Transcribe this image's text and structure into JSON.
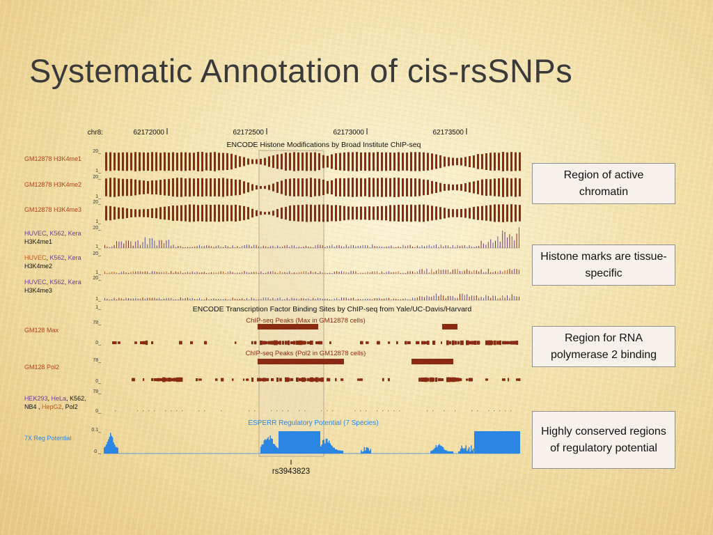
{
  "title": "Systematic Annotation of cis-rsSNPs",
  "browser": {
    "chrom": "chr8:",
    "positions": [
      "62172000",
      "62172500",
      "62173000",
      "62173500"
    ],
    "histone_header": "ENCODE Histone Modifications by Broad Institute ChIP-seq",
    "tfbs_header": "ENCODE Transcription Factor Binding Sites by ChIP-seq from Yale/UC-Davis/Harvard",
    "esperr_header": "ESPERR Regulatory Potential (7 Species)",
    "peaks_max": "ChIP-seq Peaks (Max in GM12878 cells)",
    "peaks_pol2": "ChIP-seq Peaks (Pol2 in GM12878 cells)",
    "snp": "rs3943823",
    "tracks": {
      "h3k4me1": "GM12878 H3K4me1",
      "h3k4me2": "GM12878 H3K4me2",
      "h3k4me3": "GM12878 H3K4me3",
      "huvec1_cells": [
        "HUVEC",
        "K562",
        "Kera"
      ],
      "huvec1_mark": "H3K4me1",
      "huvec2_cells": [
        "HUVEC",
        "K562",
        "Kera"
      ],
      "huvec2_mark": "H3K4me2",
      "huvec3_cells": [
        "HUVEC",
        "K562",
        "Kera"
      ],
      "huvec3_mark": "H3K4me3",
      "max": "GM128 Max",
      "pol2": "GM128 Pol2",
      "multi_cells": [
        "HEK293",
        "HeLa",
        "K562,"
      ],
      "multi_cells2": [
        "NB4",
        "HepG2",
        "Pol2"
      ],
      "reg": "7X Reg Potential"
    },
    "scale_labels": {
      "s20": "20_",
      "s1": "1_",
      "s78": "78_",
      "s0": "0_",
      "s01": "0.1_",
      "s0b": "0 _"
    }
  },
  "callouts": [
    "Region of active chromatin",
    "Histone marks are tissue-specific",
    "Region for RNA polymerase 2 binding",
    "Highly conserved regions of regulatory potential"
  ],
  "colors": {
    "histone": "#8b2a12",
    "cell_purple": "#6a3d8a",
    "cell_orange": "#c45a1a",
    "tf_bar": "#8b2a12",
    "reg_blue": "#2b86e3",
    "label_red": "#b3401a",
    "title": "#3a3a3a"
  }
}
